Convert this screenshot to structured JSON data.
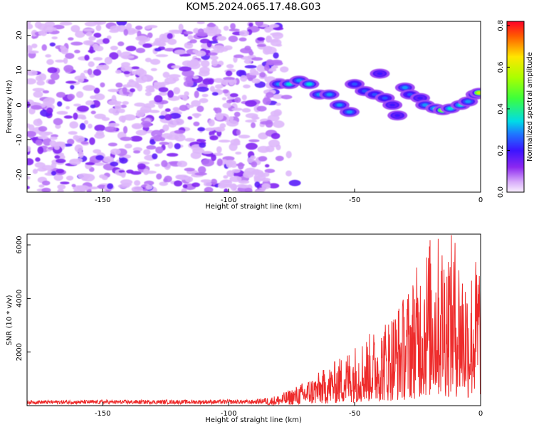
{
  "title": "KOM5.2024.065.17.48.G03",
  "chart_data": [
    {
      "type": "heatmap",
      "xlabel": "Height of straight line (km)",
      "ylabel": "Frequency (Hz)",
      "xlim": [
        -180,
        0
      ],
      "ylim": [
        -25,
        24
      ],
      "xticks": [
        -150,
        -100,
        -50,
        0
      ],
      "yticks": [
        -20,
        -10,
        0,
        10,
        20
      ],
      "colorbar": {
        "label": "Normalized spectral amplitude",
        "range": [
          0,
          0.82
        ],
        "ticks": [
          0.0,
          0.2,
          0.4,
          0.6,
          0.8
        ],
        "colormap": "rainbow"
      },
      "noise_region_km": [
        -180,
        -80
      ],
      "ridge": [
        {
          "x": -80,
          "y": 6,
          "v": 0.3
        },
        {
          "x": -76,
          "y": 6,
          "v": 0.35
        },
        {
          "x": -72,
          "y": 7,
          "v": 0.3
        },
        {
          "x": -68,
          "y": 6,
          "v": 0.35
        },
        {
          "x": -64,
          "y": 3,
          "v": 0.3
        },
        {
          "x": -60,
          "y": 3,
          "v": 0.3
        },
        {
          "x": -56,
          "y": 0,
          "v": 0.3
        },
        {
          "x": -52,
          "y": -2,
          "v": 0.3
        },
        {
          "x": -50,
          "y": 6,
          "v": 0.25
        },
        {
          "x": -46,
          "y": 4,
          "v": 0.25
        },
        {
          "x": -42,
          "y": 3,
          "v": 0.25
        },
        {
          "x": -40,
          "y": 9,
          "v": 0.2
        },
        {
          "x": -38,
          "y": 2,
          "v": 0.25
        },
        {
          "x": -35,
          "y": 0,
          "v": 0.2
        },
        {
          "x": -33,
          "y": -3,
          "v": 0.2
        },
        {
          "x": -30,
          "y": 5,
          "v": 0.3
        },
        {
          "x": -28,
          "y": 3,
          "v": 0.25
        },
        {
          "x": -24,
          "y": 2,
          "v": 0.2
        },
        {
          "x": -22,
          "y": 0,
          "v": 0.3
        },
        {
          "x": -18,
          "y": -1,
          "v": 0.35
        },
        {
          "x": -15,
          "y": -1.5,
          "v": 0.55
        },
        {
          "x": -12,
          "y": -1,
          "v": 0.35
        },
        {
          "x": -8,
          "y": 0,
          "v": 0.35
        },
        {
          "x": -5,
          "y": 1,
          "v": 0.3
        },
        {
          "x": -2,
          "y": 3,
          "v": 0.4
        },
        {
          "x": -0.5,
          "y": 3.5,
          "v": 0.6
        }
      ]
    },
    {
      "type": "line",
      "xlabel": "Height of straight line (km)",
      "ylabel": "SNR (10 * v/v)",
      "xlim": [
        -180,
        0
      ],
      "ylim": [
        0,
        6400
      ],
      "xticks": [
        -150,
        -100,
        -50,
        0
      ],
      "yticks": [
        2000,
        4000,
        6000
      ],
      "series": [
        {
          "color": "#ee2b2b",
          "envelope": [
            {
              "x": -180,
              "y": 200
            },
            {
              "x": -90,
              "y": 220
            },
            {
              "x": -80,
              "y": 400
            },
            {
              "x": -70,
              "y": 900
            },
            {
              "x": -60,
              "y": 1500
            },
            {
              "x": -50,
              "y": 2300
            },
            {
              "x": -40,
              "y": 3000
            },
            {
              "x": -30,
              "y": 4200
            },
            {
              "x": -25,
              "y": 5300
            },
            {
              "x": -20,
              "y": 6400
            },
            {
              "x": -10,
              "y": 6400
            },
            {
              "x": -5,
              "y": 5000
            },
            {
              "x": 0,
              "y": 6000
            }
          ]
        }
      ]
    }
  ]
}
